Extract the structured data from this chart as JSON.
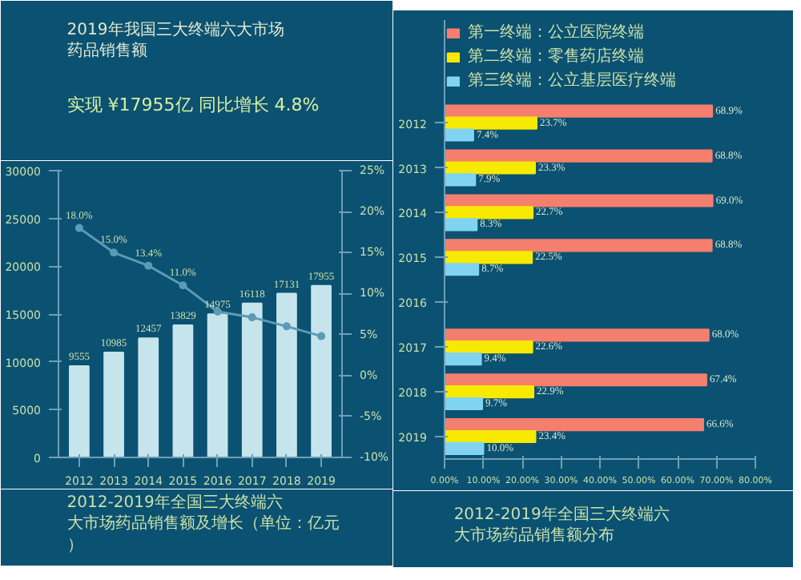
{
  "chart_data": [
    {
      "type": "bar",
      "title": "2019年我国三大终端六大市场药品销售额",
      "subtitle": "实现 ¥17955亿  同比增长 4.8%",
      "categories": [
        "2012",
        "2013",
        "2014",
        "2015",
        "2016",
        "2017",
        "2018",
        "2019"
      ],
      "series": [
        {
          "type": "bar",
          "color": "#c6e4ec",
          "values": [
            9555,
            10985,
            12457,
            13829,
            14975,
            16118,
            17131,
            17955
          ],
          "value_labels": [
            "9555",
            "10985",
            "12457",
            "13829",
            "14975",
            "16118",
            "17131",
            "17955"
          ]
        },
        {
          "type": "line",
          "axis": "y2",
          "color": "#5b9bb6",
          "values": [
            18.0,
            15.0,
            13.4,
            11.0,
            7.8,
            7.1,
            6.0,
            4.8
          ],
          "value_labels": [
            "18.0%",
            "15.0%",
            "13.4%",
            "11.0%",
            null,
            null,
            null,
            null
          ]
        }
      ],
      "ylim": [
        0,
        30000
      ],
      "yticks": [
        0,
        5000,
        10000,
        15000,
        20000,
        25000,
        30000
      ],
      "y2lim": [
        -10,
        25
      ],
      "y2ticks": [
        {
          "value": -10,
          "label": "-10%"
        },
        {
          "value": -5,
          "label": "-5%"
        },
        {
          "value": 0,
          "label": "0%"
        },
        {
          "value": 5,
          "label": "5%"
        },
        {
          "value": 10,
          "label": "10%"
        },
        {
          "value": 15,
          "label": "15%"
        },
        {
          "value": 20,
          "label": "20%"
        },
        {
          "value": 25,
          "label": "25%"
        }
      ],
      "marker": "circle",
      "grid": false,
      "annotations": [
        "2012-2019年全国三大终端六大市场药品销售额及增长（单位：亿元）"
      ]
    },
    {
      "type": "bar",
      "orientation": "horizontal",
      "categories": [
        "2012",
        "2013",
        "2014",
        "2015",
        "2016",
        "2017",
        "2018",
        "2019"
      ],
      "series": [
        {
          "name": "第一终端：公立医院终端",
          "color": "#f47f6e",
          "values": [
            68.9,
            68.8,
            69.0,
            68.8,
            null,
            68.0,
            67.4,
            66.6
          ],
          "value_labels": [
            "68.9%",
            "68.8%",
            "69.0%",
            "68.8%",
            null,
            "68.0%",
            "67.4%",
            "66.6%"
          ]
        },
        {
          "name": "第二终端：零售药店终端",
          "color": "#f7ea00",
          "values": [
            23.7,
            23.3,
            22.7,
            22.5,
            null,
            22.6,
            22.9,
            23.4
          ],
          "value_labels": [
            "23.7%",
            "23.3%",
            "22.7%",
            "22.5%",
            null,
            "22.6%",
            "22.9%",
            "23.4%"
          ]
        },
        {
          "name": "第三终端：公立基层医疗终端",
          "color": "#80d4f2",
          "values": [
            7.4,
            7.9,
            8.3,
            8.7,
            null,
            9.4,
            9.7,
            10.0
          ],
          "value_labels": [
            "7.4%",
            "7.9%",
            "8.3%",
            "8.7%",
            null,
            "9.4%",
            "9.7%",
            "10.0%"
          ]
        }
      ],
      "xlim": [
        0,
        80
      ],
      "xticks": [
        {
          "value": 0,
          "label": "0.00%"
        },
        {
          "value": 10,
          "label": "10.00%"
        },
        {
          "value": 20,
          "label": "20.00%"
        },
        {
          "value": 30,
          "label": "30.00%"
        },
        {
          "value": 40,
          "label": "40.00%"
        },
        {
          "value": 50,
          "label": "50.00%"
        },
        {
          "value": 60,
          "label": "60.00%"
        },
        {
          "value": 70,
          "label": "70.00%"
        },
        {
          "value": 80,
          "label": "80.00%"
        }
      ],
      "legend": "top",
      "grid": false,
      "annotations": [
        "2012-2019年全国三大终端六大市场药品销售额分布"
      ]
    }
  ]
}
